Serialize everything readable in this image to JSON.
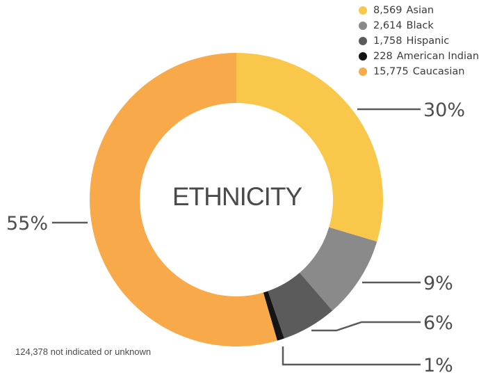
{
  "chart_data": {
    "type": "pie",
    "title": "ETHNICITY",
    "legend_position": "top-right",
    "slices": [
      {
        "count": "8,569",
        "name": "Asian",
        "percent_label": "30%",
        "value": 8569,
        "color": "#f9c84a"
      },
      {
        "count": "2,614",
        "name": "Black",
        "percent_label": "9%",
        "value": 2614,
        "color": "#8a8a8a"
      },
      {
        "count": "1,758",
        "name": "Hispanic",
        "percent_label": "6%",
        "value": 1758,
        "color": "#5a5b5a"
      },
      {
        "count": "228",
        "name": "American Indian",
        "percent_label": "1%",
        "value": 228,
        "color": "#141414"
      },
      {
        "count": "15,775",
        "name": "Caucasian",
        "percent_label": "55%",
        "value": 15775,
        "color": "#f8aa4a"
      }
    ],
    "footnote": "124,378 not indicated or unknown"
  }
}
